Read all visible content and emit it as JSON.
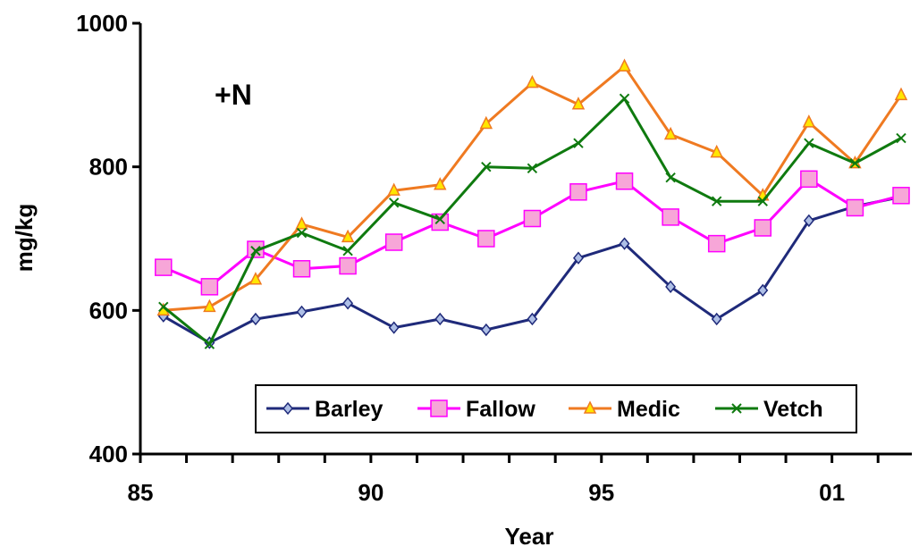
{
  "chart_data": {
    "type": "line",
    "xlabel": "Year",
    "ylabel": "mg/kg",
    "annotation": "+N",
    "xlim": [
      85,
      101.5
    ],
    "ylim": [
      400,
      1000
    ],
    "x_tick_labels": [
      "85",
      "90",
      "95",
      "01"
    ],
    "y_tick_labels": [
      "400",
      "600",
      "800",
      "1000"
    ],
    "x": [
      85.5,
      86.5,
      87.5,
      88.5,
      89.5,
      90.5,
      91.5,
      92.5,
      93.5,
      94.5,
      95.5,
      96.5,
      97.5,
      98.5,
      99.5,
      100.5,
      101.5
    ],
    "grid": false,
    "legend_position": "bottom-right",
    "series": [
      {
        "name": "Barley",
        "color": "#1f2a7a",
        "marker": "diamond",
        "values": [
          592,
          555,
          588,
          598,
          610,
          576,
          588,
          573,
          588,
          673,
          693,
          633,
          588,
          628,
          725,
          745,
          758
        ]
      },
      {
        "name": "Fallow",
        "color": "#ff00ff",
        "marker": "square",
        "values": [
          660,
          633,
          685,
          658,
          662,
          695,
          723,
          700,
          728,
          765,
          780,
          730,
          693,
          715,
          783,
          743,
          760
        ]
      },
      {
        "name": "Medic",
        "color": "#ef7a21",
        "marker": "triangle",
        "values": [
          600,
          605,
          643,
          720,
          702,
          767,
          775,
          860,
          917,
          887,
          940,
          845,
          820,
          760,
          862,
          805,
          900
        ]
      },
      {
        "name": "Vetch",
        "color": "#0f7a0f",
        "marker": "x",
        "values": [
          605,
          553,
          683,
          708,
          683,
          750,
          727,
          800,
          798,
          833,
          895,
          785,
          752,
          752,
          833,
          805,
          840
        ]
      }
    ]
  }
}
